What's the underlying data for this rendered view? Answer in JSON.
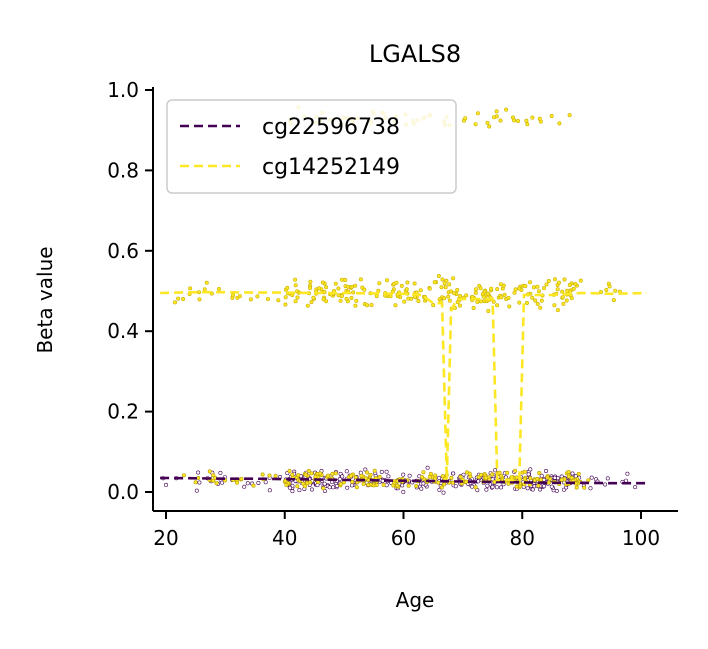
{
  "chart_data": {
    "type": "scatter",
    "title": "LGALS8",
    "xlabel": "Age",
    "ylabel": "Beta value",
    "xlim": [
      15,
      105
    ],
    "ylim": [
      -0.05,
      1.0
    ],
    "xticks": [
      "20",
      "40",
      "60",
      "80",
      "100"
    ],
    "yticks": [
      "0.0",
      "0.2",
      "0.4",
      "0.6",
      "0.8",
      "1.0"
    ],
    "xtick_values": [
      20,
      40,
      60,
      80,
      100
    ],
    "ytick_values": [
      0.0,
      0.2,
      0.4,
      0.6,
      0.8,
      1.0
    ],
    "grid": false,
    "legend_position": "top-left",
    "series": [
      {
        "name": "cg22596738",
        "color": "#440154",
        "line_style": "dashed",
        "trend": {
          "x": [
            19,
            25,
            30,
            35,
            40,
            45,
            50,
            55,
            60,
            65,
            70,
            75,
            80,
            85,
            90,
            95,
            101
          ],
          "y": [
            0.035,
            0.034,
            0.033,
            0.033,
            0.032,
            0.031,
            0.03,
            0.029,
            0.028,
            0.027,
            0.026,
            0.025,
            0.024,
            0.023,
            0.023,
            0.022,
            0.022
          ]
        },
        "points": {
          "x_range": [
            19,
            101
          ],
          "y_center": 0.028,
          "y_spread": 0.035
        }
      },
      {
        "name": "cg14252149",
        "color": "#fde725",
        "line_style": "dashed",
        "trend": {
          "x": [
            19,
            25,
            30,
            35,
            40,
            45,
            50,
            55,
            60,
            63,
            65,
            66.5,
            67.3,
            68,
            69,
            72,
            75,
            75.8,
            76.5,
            78,
            79.5,
            80.3,
            81,
            85,
            90,
            95,
            101
          ],
          "y": [
            0.495,
            0.497,
            0.497,
            0.496,
            0.496,
            0.495,
            0.495,
            0.494,
            0.493,
            0.49,
            0.47,
            0.47,
            0.03,
            0.45,
            0.48,
            0.48,
            0.48,
            0.03,
            0.03,
            0.03,
            0.03,
            0.49,
            0.49,
            0.49,
            0.495,
            0.493,
            0.495
          ]
        },
        "clusters": [
          {
            "x_range": [
              19,
              101
            ],
            "y_center": 0.495,
            "y_spread": 0.05
          },
          {
            "x_range": [
              22,
              92
            ],
            "y_center": 0.03,
            "y_spread": 0.03
          },
          {
            "x_range": [
              42,
              88
            ],
            "y_center": 0.93,
            "y_spread": 0.03
          }
        ]
      }
    ]
  }
}
